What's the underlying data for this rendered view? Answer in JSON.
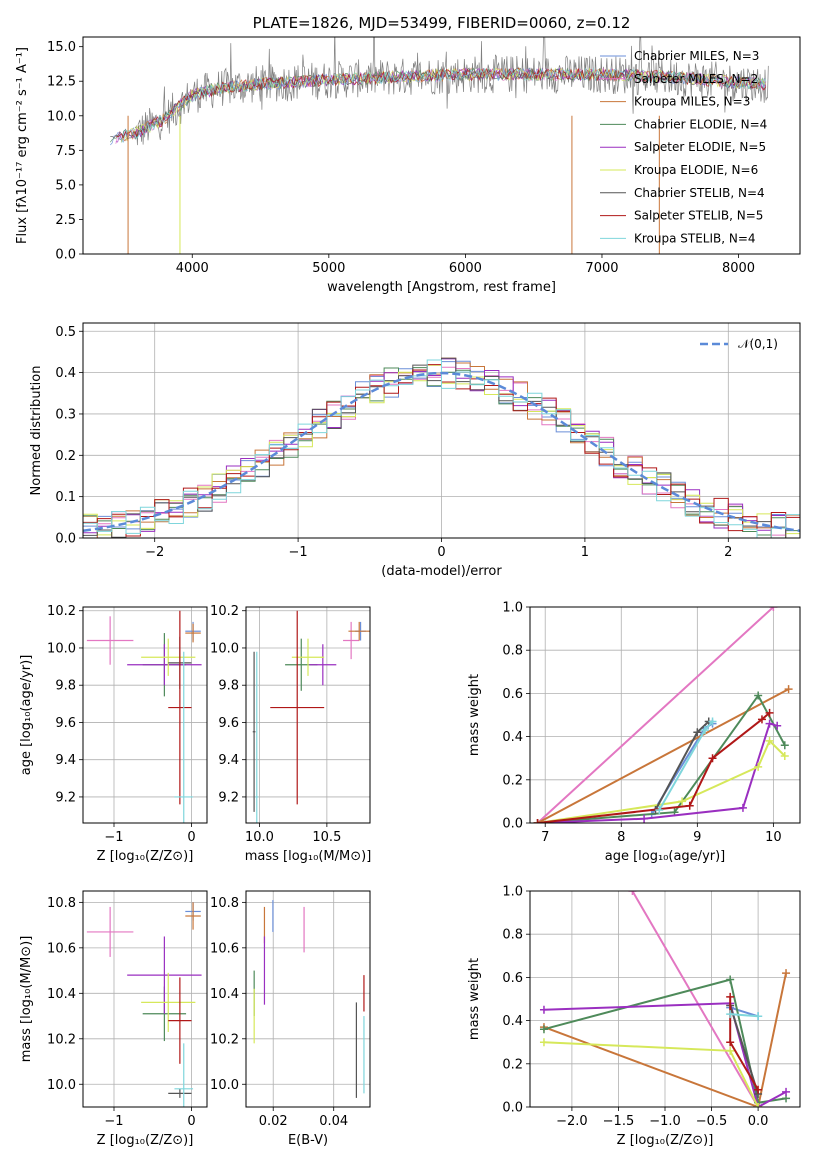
{
  "colors": {
    "chabrier_miles": "#6b8fd8",
    "salpeter_miles": "#e377c2",
    "kroupa_miles": "#c8763a",
    "chabrier_elodie": "#4e8a5a",
    "salpeter_elodie": "#9a2fc0",
    "kroupa_elodie": "#d6e85a",
    "chabrier_stelib": "#555555",
    "salpeter_stelib": "#b01818",
    "kroupa_stelib": "#7fd6dc"
  },
  "chart_data": [
    {
      "type": "line",
      "title": "PLATE=1826, MJD=53499, FIBERID=0060, z=0.12",
      "xlabel": "wavelength [Angstrom, rest frame]",
      "ylabel": "Flux [fλ10⁻¹⁷ erg cm⁻² s⁻¹ A⁻¹]",
      "xlim": [
        3200,
        8450
      ],
      "ylim": [
        0,
        15.7
      ],
      "xticks": [
        "4000",
        "5000",
        "6000",
        "7000",
        "8000"
      ],
      "yticks": [
        "0.0",
        "2.5",
        "5.0",
        "7.5",
        "10.0",
        "12.5",
        "15.0"
      ],
      "grid": false,
      "legend_position": "upper-right",
      "legend": [
        "Chabrier MILES, N_SSP=3",
        "Salpeter MILES, N_SSP=2",
        "Kroupa MILES, N_SSP=3",
        "Chabrier ELODIE, N_SSP=4",
        "Salpeter ELODIE, N_SSP=5",
        "Kroupa ELODIE, N_SSP=6",
        "Chabrier STELIB, N_SSP=4",
        "Salpeter STELIB, N_SSP=5",
        "Kroupa STELIB, N_SSP=4"
      ],
      "data_envelope": {
        "x": [
          3400,
          3600,
          3800,
          4000,
          4200,
          4500,
          5000,
          5500,
          6000,
          6500,
          7000,
          7500,
          8000,
          8200
        ],
        "y": [
          8.3,
          8.8,
          9.8,
          11.5,
          12.0,
          12.3,
          12.6,
          12.8,
          13.0,
          13.0,
          13.0,
          12.8,
          12.4,
          12.3
        ]
      }
    },
    {
      "type": "step",
      "xlabel": "(data-model)/error",
      "ylabel": "Normed distribution",
      "xlim": [
        -2.5,
        2.5
      ],
      "ylim": [
        0,
        0.52
      ],
      "xticks": [
        "−2",
        "−1",
        "0",
        "1",
        "2"
      ],
      "yticks": [
        "0.0",
        "0.1",
        "0.2",
        "0.3",
        "0.4",
        "0.5"
      ],
      "grid": true,
      "legend_position": "upper-right",
      "legend": [
        "𝒩(0,1)"
      ],
      "reference_curve": "standard normal pdf",
      "bin_width": 0.1
    },
    {
      "type": "errorbar",
      "xlabel": "Z [log₁₀(Z/Z⊙)]",
      "ylabel": "age  [log₁₀(age/yr)]",
      "xlim": [
        -1.4,
        0.2
      ],
      "ylim": [
        9.06,
        10.22
      ],
      "xticks": [
        "−1",
        "0"
      ],
      "yticks": [
        "9.2",
        "9.4",
        "9.6",
        "9.8",
        "10.0",
        "10.2"
      ],
      "points": [
        {
          "model": "chabrier_miles",
          "x": 0.02,
          "xerr": 0.1,
          "y": 10.09,
          "yerr": 0.05
        },
        {
          "model": "salpeter_miles",
          "x": -1.05,
          "xerr": 0.3,
          "y": 10.04,
          "yerr": 0.13
        },
        {
          "model": "kroupa_miles",
          "x": 0.02,
          "xerr": 0.1,
          "y": 10.08,
          "yerr": 0.05
        },
        {
          "model": "chabrier_elodie",
          "x": -0.35,
          "xerr": 0.28,
          "y": 9.91,
          "yerr": 0.17
        },
        {
          "model": "salpeter_elodie",
          "x": -0.35,
          "xerr": 0.48,
          "y": 9.91,
          "yerr": 0.11
        },
        {
          "model": "kroupa_elodie",
          "x": -0.3,
          "xerr": 0.35,
          "y": 9.95,
          "yerr": 0.1
        },
        {
          "model": "chabrier_stelib",
          "x": -0.15,
          "xerr": 0.15,
          "y": 9.92,
          "yerr": 0.14
        },
        {
          "model": "salpeter_stelib",
          "x": -0.15,
          "xerr": 0.15,
          "y": 9.68,
          "yerr": 0.52
        },
        {
          "model": "kroupa_stelib",
          "x": -0.1,
          "xerr": 0.12,
          "y": 9.2,
          "yerr": 0.78
        }
      ]
    },
    {
      "type": "errorbar",
      "xlabel": "mass [log₁₀(M/M⊙)]",
      "ylabel": "",
      "xlim": [
        9.9,
        10.82
      ],
      "ylim": [
        9.06,
        10.22
      ],
      "xticks": [
        "10.0",
        "10.5"
      ],
      "yticks": [
        "9.2",
        "9.4",
        "9.6",
        "9.8",
        "10.0",
        "10.2"
      ],
      "points": [
        {
          "model": "chabrier_miles",
          "x": 10.75,
          "xerr": 0.04,
          "y": 10.09,
          "yerr": 0.05
        },
        {
          "model": "salpeter_miles",
          "x": 10.68,
          "xerr": 0.06,
          "y": 10.04,
          "yerr": 0.1
        },
        {
          "model": "kroupa_miles",
          "x": 10.74,
          "xerr": 0.08,
          "y": 10.09,
          "yerr": 0.05
        },
        {
          "model": "chabrier_elodie",
          "x": 10.31,
          "xerr": 0.12,
          "y": 9.91,
          "yerr": 0.14
        },
        {
          "model": "salpeter_elodie",
          "x": 10.47,
          "xerr": 0.1,
          "y": 9.91,
          "yerr": 0.11
        },
        {
          "model": "kroupa_elodie",
          "x": 10.36,
          "xerr": 0.12,
          "y": 9.95,
          "yerr": 0.1
        },
        {
          "model": "chabrier_stelib",
          "x": 9.96,
          "xerr": 0.01,
          "y": 9.55,
          "yerr": 0.43
        },
        {
          "model": "salpeter_stelib",
          "x": 10.28,
          "xerr": 0.2,
          "y": 9.68,
          "yerr": 0.52
        },
        {
          "model": "kroupa_stelib",
          "x": 9.98,
          "xerr": 0.01,
          "y": 9.2,
          "yerr": 0.78
        }
      ]
    },
    {
      "type": "line",
      "xlabel": "age  [log₁₀(age/yr)]",
      "ylabel": "mass weight",
      "xlim": [
        6.8,
        10.35
      ],
      "ylim": [
        0,
        1
      ],
      "xticks": [
        "7",
        "8",
        "9",
        "10"
      ],
      "yticks": [
        "0.0",
        "0.2",
        "0.4",
        "0.6",
        "0.8",
        "1.0"
      ],
      "grid": true,
      "series": [
        {
          "model": "chabrier_miles",
          "x": [
            8.4,
            9.1,
            9.2
          ],
          "y": [
            0.04,
            0.44,
            0.46
          ]
        },
        {
          "model": "salpeter_miles",
          "x": [
            6.9,
            10.0
          ],
          "y": [
            0.0,
            1.0
          ]
        },
        {
          "model": "kroupa_miles",
          "x": [
            6.9,
            10.2
          ],
          "y": [
            0.0,
            0.62
          ]
        },
        {
          "model": "chabrier_elodie",
          "x": [
            6.9,
            8.7,
            9.8,
            10.15
          ],
          "y": [
            0.0,
            0.05,
            0.59,
            0.36
          ]
        },
        {
          "model": "salpeter_elodie",
          "x": [
            6.9,
            8.3,
            9.6,
            9.95,
            10.05
          ],
          "y": [
            0.0,
            0.02,
            0.07,
            0.46,
            0.45
          ]
        },
        {
          "model": "kroupa_elodie",
          "x": [
            6.9,
            8.8,
            9.8,
            9.95,
            10.15
          ],
          "y": [
            0.0,
            0.1,
            0.26,
            0.38,
            0.31
          ]
        },
        {
          "model": "chabrier_stelib",
          "x": [
            8.45,
            9.0,
            9.15
          ],
          "y": [
            0.06,
            0.42,
            0.47
          ]
        },
        {
          "model": "salpeter_stelib",
          "x": [
            6.9,
            8.9,
            9.2,
            9.85,
            9.95
          ],
          "y": [
            0.0,
            0.08,
            0.3,
            0.48,
            0.51
          ]
        },
        {
          "model": "kroupa_stelib",
          "x": [
            8.5,
            9.1,
            9.2
          ],
          "y": [
            0.06,
            0.43,
            0.47
          ]
        }
      ]
    },
    {
      "type": "errorbar",
      "xlabel": "Z [log₁₀(Z/Z⊙)]",
      "ylabel": "mass [log₁₀(M/M⊙)]",
      "xlim": [
        -1.4,
        0.2
      ],
      "ylim": [
        9.9,
        10.85
      ],
      "xticks": [
        "−1",
        "0"
      ],
      "yticks": [
        "10.0",
        "10.2",
        "10.4",
        "10.6",
        "10.8"
      ],
      "points": [
        {
          "model": "chabrier_miles",
          "x": 0.02,
          "xerr": 0.1,
          "y": 10.76,
          "yerr": 0.04
        },
        {
          "model": "salpeter_miles",
          "x": -1.05,
          "xerr": 0.3,
          "y": 10.67,
          "yerr": 0.11
        },
        {
          "model": "kroupa_miles",
          "x": 0.02,
          "xerr": 0.1,
          "y": 10.74,
          "yerr": 0.06
        },
        {
          "model": "chabrier_elodie",
          "x": -0.35,
          "xerr": 0.28,
          "y": 10.31,
          "yerr": 0.12
        },
        {
          "model": "salpeter_elodie",
          "x": -0.35,
          "xerr": 0.48,
          "y": 10.48,
          "yerr": 0.17
        },
        {
          "model": "kroupa_elodie",
          "x": -0.3,
          "xerr": 0.35,
          "y": 10.36,
          "yerr": 0.13
        },
        {
          "model": "chabrier_stelib",
          "x": -0.15,
          "xerr": 0.15,
          "y": 9.96,
          "yerr": 0.02
        },
        {
          "model": "salpeter_stelib",
          "x": -0.15,
          "xerr": 0.15,
          "y": 10.28,
          "yerr": 0.19
        },
        {
          "model": "kroupa_stelib",
          "x": -0.1,
          "xerr": 0.12,
          "y": 9.98,
          "yerr": 0.2
        }
      ]
    },
    {
      "type": "errorbar",
      "xlabel": "E(B-V)",
      "ylabel": "",
      "xlim": [
        0.011,
        0.052
      ],
      "ylim": [
        9.9,
        10.85
      ],
      "xticks": [
        "0.02",
        "0.04"
      ],
      "yticks": [
        "10.0",
        "10.2",
        "10.4",
        "10.6",
        "10.8"
      ],
      "points": [
        {
          "model": "chabrier_miles",
          "x": 0.0199,
          "xerr": 0,
          "y": 10.74,
          "yerr": 0.07
        },
        {
          "model": "salpeter_miles",
          "x": 0.0302,
          "xerr": 0,
          "y": 10.68,
          "yerr": 0.1
        },
        {
          "model": "kroupa_miles",
          "x": 0.0171,
          "xerr": 0,
          "y": 10.7,
          "yerr": 0.08
        },
        {
          "model": "chabrier_elodie",
          "x": 0.0137,
          "xerr": 0,
          "y": 10.4,
          "yerr": 0.1
        },
        {
          "model": "salpeter_elodie",
          "x": 0.0171,
          "xerr": 0,
          "y": 10.5,
          "yerr": 0.15
        },
        {
          "model": "kroupa_elodie",
          "x": 0.0137,
          "xerr": 0,
          "y": 10.3,
          "yerr": 0.12
        },
        {
          "model": "chabrier_stelib",
          "x": 0.0475,
          "xerr": 0,
          "y": 10.15,
          "yerr": 0.21
        },
        {
          "model": "salpeter_stelib",
          "x": 0.05,
          "xerr": 0,
          "y": 10.4,
          "yerr": 0.08
        },
        {
          "model": "kroupa_stelib",
          "x": 0.05,
          "xerr": 0,
          "y": 10.13,
          "yerr": 0.17
        }
      ]
    },
    {
      "type": "line",
      "xlabel": "Z [log₁₀(Z/Z⊙)]",
      "ylabel": "mass weight",
      "xlim": [
        -2.45,
        0.45
      ],
      "ylim": [
        0,
        1
      ],
      "xticks": [
        "−2.0",
        "−1.5",
        "−1.0",
        "−0.5",
        "0.0"
      ],
      "yticks": [
        "0.0",
        "0.2",
        "0.4",
        "0.6",
        "0.8",
        "1.0"
      ],
      "grid": true,
      "series": [
        {
          "model": "chabrier_miles",
          "x": [
            -0.3,
            0.0
          ],
          "y": [
            0.46,
            0.42
          ]
        },
        {
          "model": "salpeter_miles",
          "x": [
            -1.35,
            0.0
          ],
          "y": [
            1.0,
            0.0
          ]
        },
        {
          "model": "kroupa_miles",
          "x": [
            -2.3,
            0.0,
            0.3
          ],
          "y": [
            0.37,
            0.0,
            0.62
          ]
        },
        {
          "model": "chabrier_elodie",
          "x": [
            -2.3,
            -0.3,
            0.0,
            0.3
          ],
          "y": [
            0.36,
            0.59,
            0.02,
            0.04
          ]
        },
        {
          "model": "salpeter_elodie",
          "x": [
            -2.3,
            -0.3,
            0.0,
            0.3
          ],
          "y": [
            0.45,
            0.48,
            0.0,
            0.07
          ]
        },
        {
          "model": "kroupa_elodie",
          "x": [
            -2.3,
            -0.3,
            0.0
          ],
          "y": [
            0.3,
            0.26,
            0.0
          ]
        },
        {
          "model": "chabrier_stelib",
          "x": [
            -0.3,
            0.0
          ],
          "y": [
            0.47,
            0.06
          ]
        },
        {
          "model": "salpeter_stelib",
          "x": [
            -0.3,
            -0.3,
            0.0
          ],
          "y": [
            0.51,
            0.3,
            0.08
          ]
        },
        {
          "model": "kroupa_stelib",
          "x": [
            -0.3,
            0.0
          ],
          "y": [
            0.43,
            0.42
          ]
        }
      ]
    }
  ]
}
